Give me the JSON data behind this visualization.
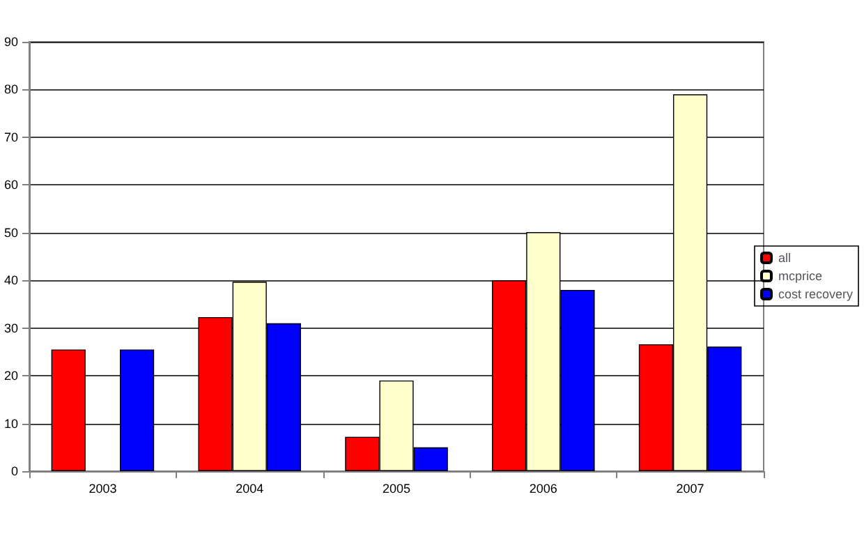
{
  "chart_data": {
    "type": "bar",
    "categories": [
      "2003",
      "2004",
      "2005",
      "2006",
      "2007"
    ],
    "series": [
      {
        "name": "all",
        "color": "#ff0000",
        "values": [
          25.5,
          32.3,
          7.2,
          40,
          26.6
        ]
      },
      {
        "name": "mcprice",
        "color": "#ffffcc",
        "values": [
          null,
          39.7,
          19,
          50.1,
          79
        ]
      },
      {
        "name": "cost recovery",
        "color": "#0000ff",
        "values": [
          25.5,
          31,
          5,
          38,
          26.1
        ]
      }
    ],
    "ylim": [
      0,
      90
    ],
    "yticks": [
      0,
      10,
      20,
      30,
      40,
      50,
      60,
      70,
      80,
      90
    ],
    "grid": "y",
    "legend": "right"
  }
}
